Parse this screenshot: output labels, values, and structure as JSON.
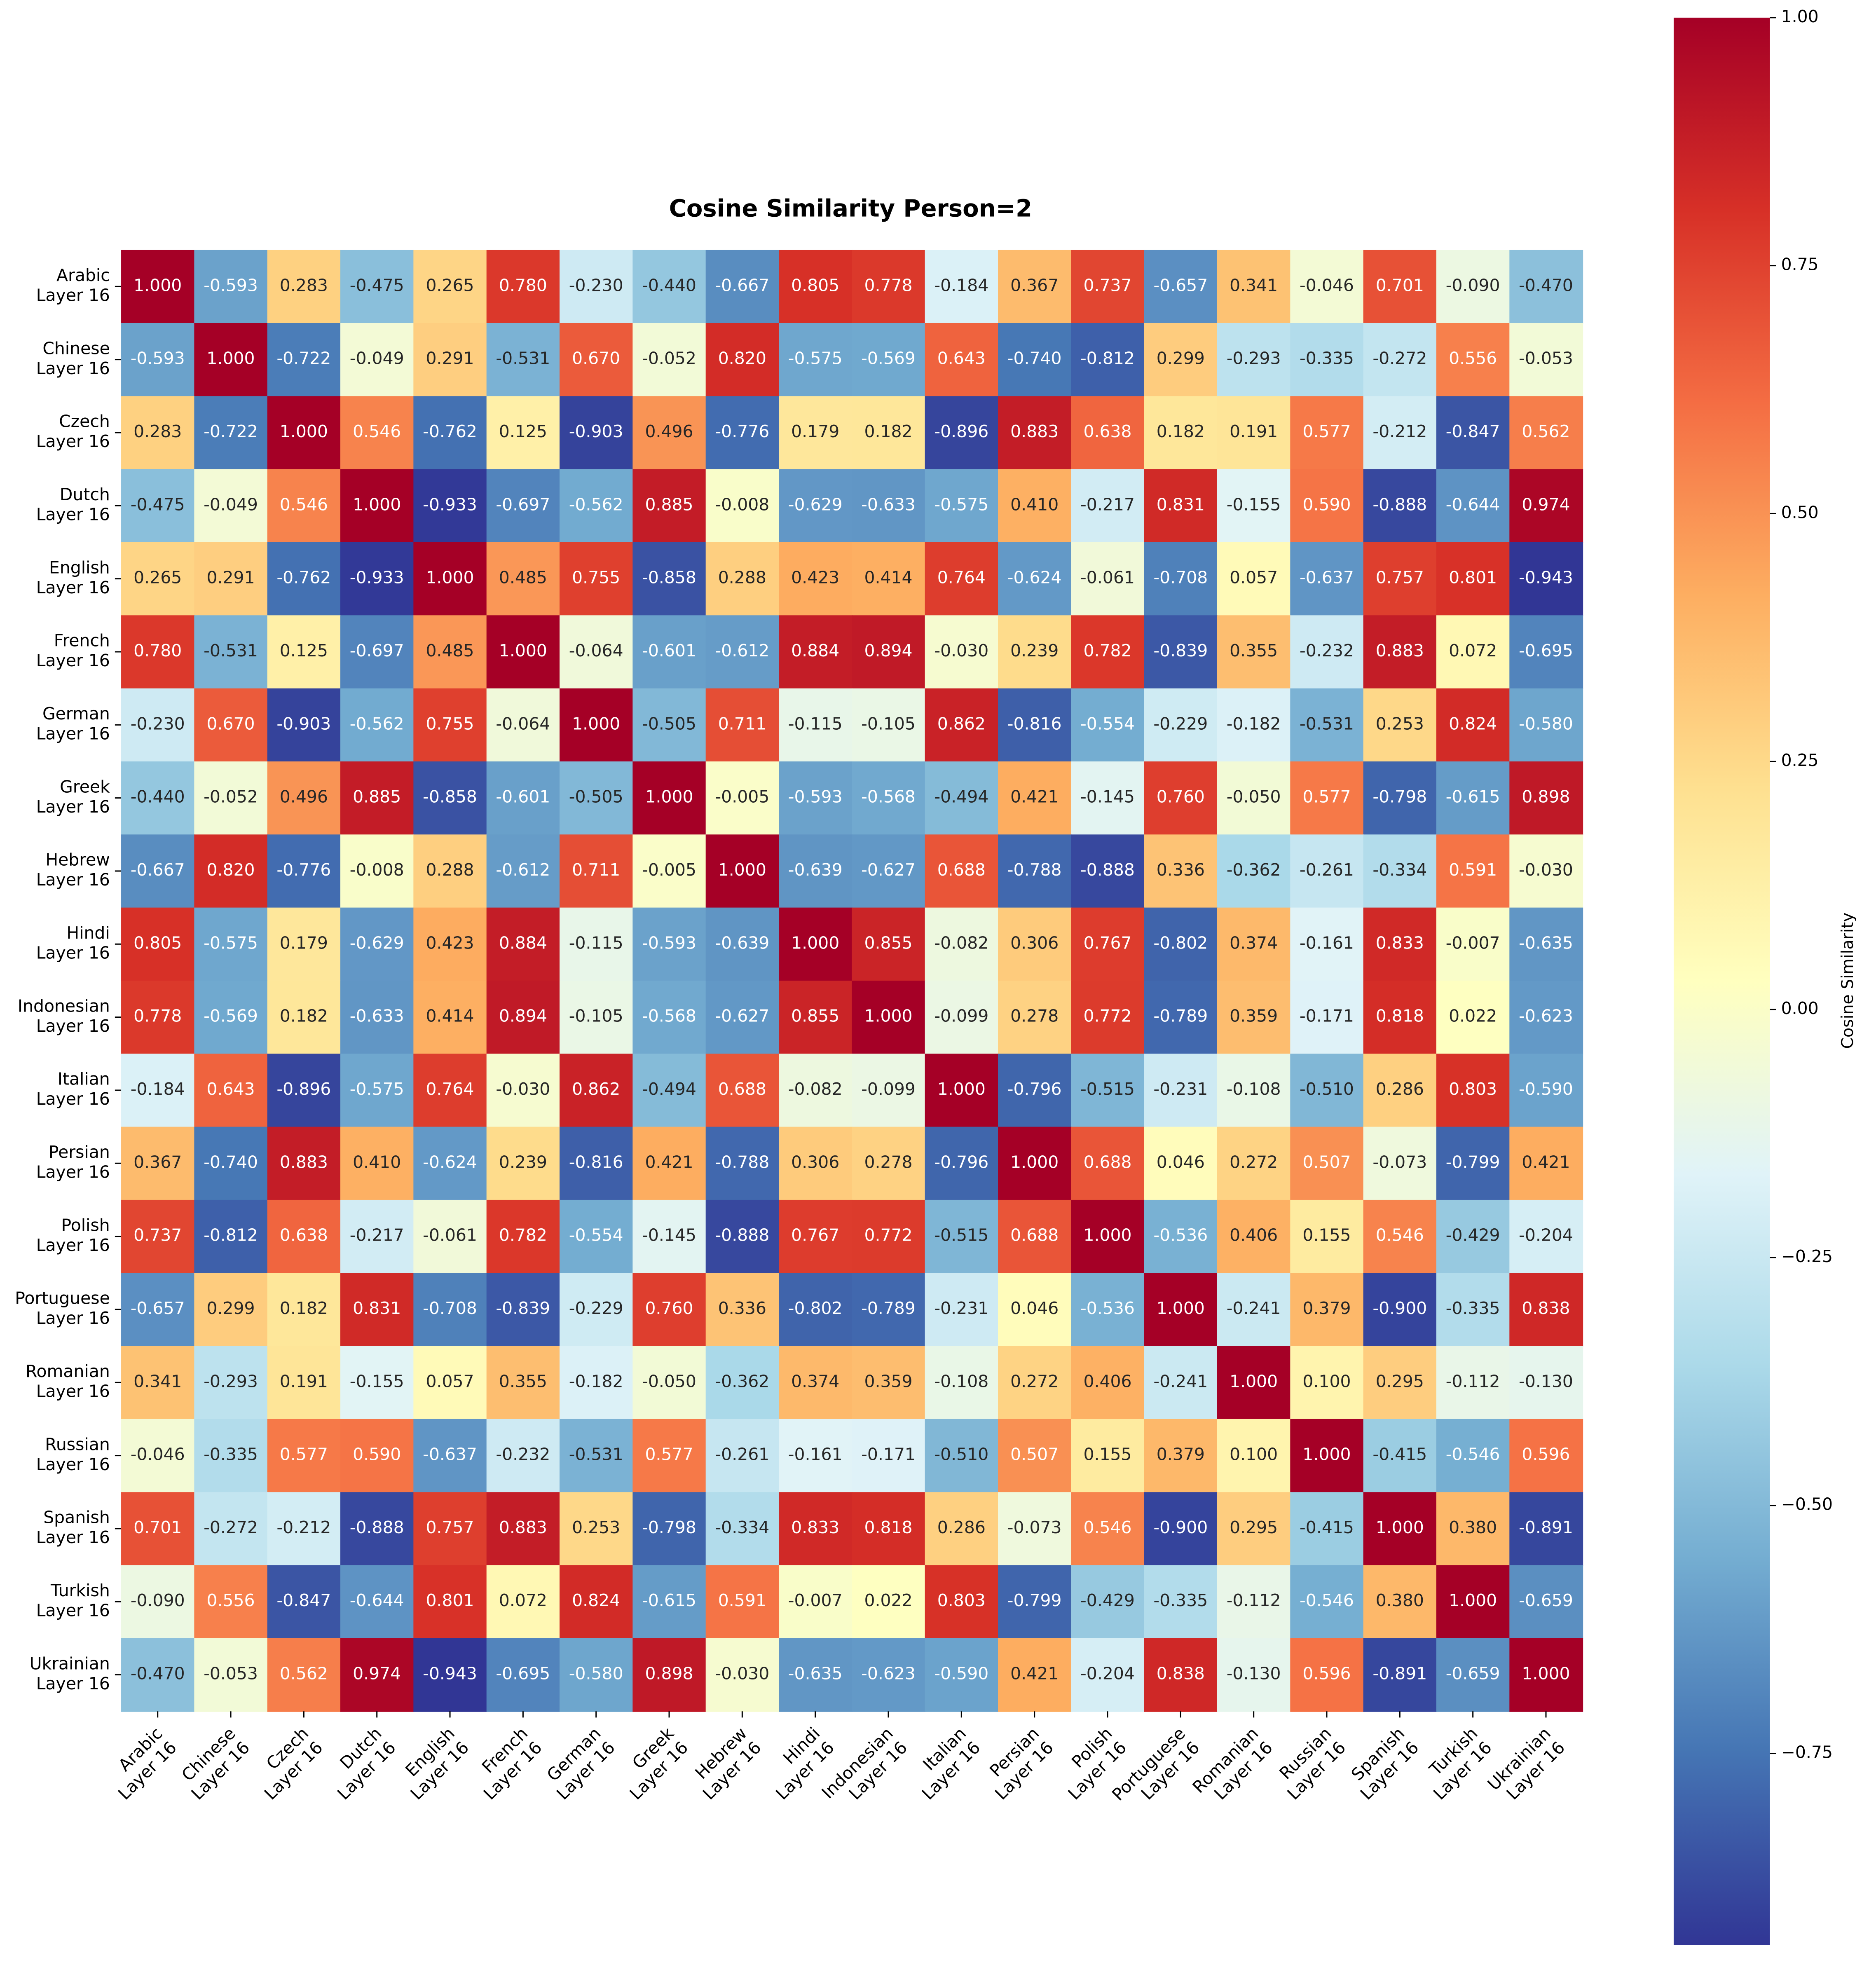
{
  "chart_data": {
    "type": "heatmap",
    "title": "Cosine Similarity Person=2",
    "categories": [
      "Arabic\nLayer 16",
      "Chinese\nLayer 16",
      "Czech\nLayer 16",
      "Dutch\nLayer 16",
      "English\nLayer 16",
      "French\nLayer 16",
      "German\nLayer 16",
      "Greek\nLayer 16",
      "Hebrew\nLayer 16",
      "Hindi\nLayer 16",
      "Indonesian\nLayer 16",
      "Italian\nLayer 16",
      "Persian\nLayer 16",
      "Polish\nLayer 16",
      "Portuguese\nLayer 16",
      "Romanian\nLayer 16",
      "Russian\nLayer 16",
      "Spanish\nLayer 16",
      "Turkish\nLayer 16",
      "Ukrainian\nLayer 16"
    ],
    "values": [
      [
        1.0,
        -0.593,
        0.283,
        -0.475,
        0.265,
        0.78,
        -0.23,
        -0.44,
        -0.667,
        0.805,
        0.778,
        -0.184,
        0.367,
        0.737,
        -0.657,
        0.341,
        -0.046,
        0.701,
        -0.09,
        -0.47
      ],
      [
        -0.593,
        1.0,
        -0.722,
        -0.049,
        0.291,
        -0.531,
        0.67,
        -0.052,
        0.82,
        -0.575,
        -0.569,
        0.643,
        -0.74,
        -0.812,
        0.299,
        -0.293,
        -0.335,
        -0.272,
        0.556,
        -0.053
      ],
      [
        0.283,
        -0.722,
        1.0,
        0.546,
        -0.762,
        0.125,
        -0.903,
        0.496,
        -0.776,
        0.179,
        0.182,
        -0.896,
        0.883,
        0.638,
        0.182,
        0.191,
        0.577,
        -0.212,
        -0.847,
        0.562
      ],
      [
        -0.475,
        -0.049,
        0.546,
        1.0,
        -0.933,
        -0.697,
        -0.562,
        0.885,
        -0.008,
        -0.629,
        -0.633,
        -0.575,
        0.41,
        -0.217,
        0.831,
        -0.155,
        0.59,
        -0.888,
        -0.644,
        0.974
      ],
      [
        0.265,
        0.291,
        -0.762,
        -0.933,
        1.0,
        0.485,
        0.755,
        -0.858,
        0.288,
        0.423,
        0.414,
        0.764,
        -0.624,
        -0.061,
        -0.708,
        0.057,
        -0.637,
        0.757,
        0.801,
        -0.943
      ],
      [
        0.78,
        -0.531,
        0.125,
        -0.697,
        0.485,
        1.0,
        -0.064,
        -0.601,
        -0.612,
        0.884,
        0.894,
        -0.03,
        0.239,
        0.782,
        -0.839,
        0.355,
        -0.232,
        0.883,
        0.072,
        -0.695
      ],
      [
        -0.23,
        0.67,
        -0.903,
        -0.562,
        0.755,
        -0.064,
        1.0,
        -0.505,
        0.711,
        -0.115,
        -0.105,
        0.862,
        -0.816,
        -0.554,
        -0.229,
        -0.182,
        -0.531,
        0.253,
        0.824,
        -0.58
      ],
      [
        -0.44,
        -0.052,
        0.496,
        0.885,
        -0.858,
        -0.601,
        -0.505,
        1.0,
        -0.005,
        -0.593,
        -0.568,
        -0.494,
        0.421,
        -0.145,
        0.76,
        -0.05,
        0.577,
        -0.798,
        -0.615,
        0.898
      ],
      [
        -0.667,
        0.82,
        -0.776,
        -0.008,
        0.288,
        -0.612,
        0.711,
        -0.005,
        1.0,
        -0.639,
        -0.627,
        0.688,
        -0.788,
        -0.888,
        0.336,
        -0.362,
        -0.261,
        -0.334,
        0.591,
        -0.03
      ],
      [
        0.805,
        -0.575,
        0.179,
        -0.629,
        0.423,
        0.884,
        -0.115,
        -0.593,
        -0.639,
        1.0,
        0.855,
        -0.082,
        0.306,
        0.767,
        -0.802,
        0.374,
        -0.161,
        0.833,
        -0.007,
        -0.635
      ],
      [
        0.778,
        -0.569,
        0.182,
        -0.633,
        0.414,
        0.894,
        -0.105,
        -0.568,
        -0.627,
        0.855,
        1.0,
        -0.099,
        0.278,
        0.772,
        -0.789,
        0.359,
        -0.171,
        0.818,
        0.022,
        -0.623
      ],
      [
        -0.184,
        0.643,
        -0.896,
        -0.575,
        0.764,
        -0.03,
        0.862,
        -0.494,
        0.688,
        -0.082,
        -0.099,
        1.0,
        -0.796,
        -0.515,
        -0.231,
        -0.108,
        -0.51,
        0.286,
        0.803,
        -0.59
      ],
      [
        0.367,
        -0.74,
        0.883,
        0.41,
        -0.624,
        0.239,
        -0.816,
        0.421,
        -0.788,
        0.306,
        0.278,
        -0.796,
        1.0,
        0.688,
        0.046,
        0.272,
        0.507,
        -0.073,
        -0.799,
        0.421
      ],
      [
        0.737,
        -0.812,
        0.638,
        -0.217,
        -0.061,
        0.782,
        -0.554,
        -0.145,
        -0.888,
        0.767,
        0.772,
        -0.515,
        0.688,
        1.0,
        -0.536,
        0.406,
        0.155,
        0.546,
        -0.429,
        -0.204
      ],
      [
        -0.657,
        0.299,
        0.182,
        0.831,
        -0.708,
        -0.839,
        -0.229,
        0.76,
        0.336,
        -0.802,
        -0.789,
        -0.231,
        0.046,
        -0.536,
        1.0,
        -0.241,
        0.379,
        -0.9,
        -0.335,
        0.838
      ],
      [
        0.341,
        -0.293,
        0.191,
        -0.155,
        0.057,
        0.355,
        -0.182,
        -0.05,
        -0.362,
        0.374,
        0.359,
        -0.108,
        0.272,
        0.406,
        -0.241,
        1.0,
        0.1,
        0.295,
        -0.112,
        -0.13
      ],
      [
        -0.046,
        -0.335,
        0.577,
        0.59,
        -0.637,
        -0.232,
        -0.531,
        0.577,
        -0.261,
        -0.161,
        -0.171,
        -0.51,
        0.507,
        0.155,
        0.379,
        0.1,
        1.0,
        -0.415,
        -0.546,
        0.596
      ],
      [
        0.701,
        -0.272,
        -0.212,
        -0.888,
        0.757,
        0.883,
        0.253,
        -0.798,
        -0.334,
        0.833,
        0.818,
        0.286,
        -0.073,
        0.546,
        -0.9,
        0.295,
        -0.415,
        1.0,
        0.38,
        -0.891
      ],
      [
        -0.09,
        0.556,
        -0.847,
        -0.644,
        0.801,
        0.072,
        0.824,
        -0.615,
        0.591,
        -0.007,
        0.022,
        0.803,
        -0.799,
        -0.429,
        -0.335,
        -0.112,
        -0.546,
        0.38,
        1.0,
        -0.659
      ],
      [
        -0.47,
        -0.053,
        0.562,
        0.974,
        -0.943,
        -0.695,
        -0.58,
        0.898,
        -0.03,
        -0.635,
        -0.623,
        -0.59,
        0.421,
        -0.204,
        0.838,
        -0.13,
        0.596,
        -0.891,
        -0.659,
        1.0
      ]
    ],
    "value_labels": [
      [
        "1.000",
        "-0.593",
        "0.283",
        "-0.475",
        "0.265",
        "0.780",
        "-0.230",
        "-0.440",
        "-0.667",
        "0.805",
        "0.778",
        "-0.184",
        "0.367",
        "0.737",
        "-0.657",
        "0.341",
        "-0.046",
        "0.701",
        "-0.090",
        "-0.470"
      ],
      [
        "-0.593",
        "1.000",
        "-0.722",
        "-0.049",
        "0.291",
        "-0.531",
        "0.670",
        "-0.052",
        "0.820",
        "-0.575",
        "-0.569",
        "0.643",
        "-0.740",
        "-0.812",
        "0.299",
        "-0.293",
        "-0.335",
        "-0.272",
        "0.556",
        "-0.053"
      ],
      [
        "0.283",
        "-0.722",
        "1.000",
        "0.546",
        "-0.762",
        "0.125",
        "-0.903",
        "0.496",
        "-0.776",
        "0.179",
        "0.182",
        "-0.896",
        "0.883",
        "0.638",
        "0.182",
        "0.191",
        "0.577",
        "-0.212",
        "-0.847",
        "0.562"
      ],
      [
        "-0.475",
        "-0.049",
        "0.546",
        "1.000",
        "-0.933",
        "-0.697",
        "-0.562",
        "0.885",
        "-0.008",
        "-0.629",
        "-0.633",
        "-0.575",
        "0.410",
        "-0.217",
        "0.831",
        "-0.155",
        "0.590",
        "-0.888",
        "-0.644",
        "0.974"
      ],
      [
        "0.265",
        "0.291",
        "-0.762",
        "-0.933",
        "1.000",
        "0.485",
        "0.755",
        "-0.858",
        "0.288",
        "0.423",
        "0.414",
        "0.764",
        "-0.624",
        "-0.061",
        "-0.708",
        "0.057",
        "-0.637",
        "0.757",
        "0.801",
        "-0.943"
      ],
      [
        "0.780",
        "-0.531",
        "0.125",
        "-0.697",
        "0.485",
        "1.000",
        "-0.064",
        "-0.601",
        "-0.612",
        "0.884",
        "0.894",
        "-0.030",
        "0.239",
        "0.782",
        "-0.839",
        "0.355",
        "-0.232",
        "0.883",
        "0.072",
        "-0.695"
      ],
      [
        "-0.230",
        "0.670",
        "-0.903",
        "-0.562",
        "0.755",
        "-0.064",
        "1.000",
        "-0.505",
        "0.711",
        "-0.115",
        "-0.105",
        "0.862",
        "-0.816",
        "-0.554",
        "-0.229",
        "-0.182",
        "-0.531",
        "0.253",
        "0.824",
        "-0.580"
      ],
      [
        "-0.440",
        "-0.052",
        "0.496",
        "0.885",
        "-0.858",
        "-0.601",
        "-0.505",
        "1.000",
        "-0.005",
        "-0.593",
        "-0.568",
        "-0.494",
        "0.421",
        "-0.145",
        "0.760",
        "-0.050",
        "0.577",
        "-0.798",
        "-0.615",
        "0.898"
      ],
      [
        "-0.667",
        "0.820",
        "-0.776",
        "-0.008",
        "0.288",
        "-0.612",
        "0.711",
        "-0.005",
        "1.000",
        "-0.639",
        "-0.627",
        "0.688",
        "-0.788",
        "-0.888",
        "0.336",
        "-0.362",
        "-0.261",
        "-0.334",
        "0.591",
        "-0.030"
      ],
      [
        "0.805",
        "-0.575",
        "0.179",
        "-0.629",
        "0.423",
        "0.884",
        "-0.115",
        "-0.593",
        "-0.639",
        "1.000",
        "0.855",
        "-0.082",
        "0.306",
        "0.767",
        "-0.802",
        "0.374",
        "-0.161",
        "0.833",
        "-0.007",
        "-0.635"
      ],
      [
        "0.778",
        "-0.569",
        "0.182",
        "-0.633",
        "0.414",
        "0.894",
        "-0.105",
        "-0.568",
        "-0.627",
        "0.855",
        "1.000",
        "-0.099",
        "0.278",
        "0.772",
        "-0.789",
        "0.359",
        "-0.171",
        "0.818",
        "0.022",
        "-0.623"
      ],
      [
        "-0.184",
        "0.643",
        "-0.896",
        "-0.575",
        "0.764",
        "-0.030",
        "0.862",
        "-0.494",
        "0.688",
        "-0.082",
        "-0.099",
        "1.000",
        "-0.796",
        "-0.515",
        "-0.231",
        "-0.108",
        "-0.510",
        "0.286",
        "0.803",
        "-0.590"
      ],
      [
        "0.367",
        "-0.740",
        "0.883",
        "0.410",
        "-0.624",
        "0.239",
        "-0.816",
        "0.421",
        "-0.788",
        "0.306",
        "0.278",
        "-0.796",
        "1.000",
        "0.688",
        "0.046",
        "0.272",
        "0.507",
        "-0.073",
        "-0.799",
        "0.421"
      ],
      [
        "0.737",
        "-0.812",
        "0.638",
        "-0.217",
        "-0.061",
        "0.782",
        "-0.554",
        "-0.145",
        "-0.888",
        "0.767",
        "0.772",
        "-0.515",
        "0.688",
        "1.000",
        "-0.536",
        "0.406",
        "0.155",
        "0.546",
        "-0.429",
        "-0.204"
      ],
      [
        "-0.657",
        "0.299",
        "0.182",
        "0.831",
        "-0.708",
        "-0.839",
        "-0.229",
        "0.760",
        "0.336",
        "-0.802",
        "-0.789",
        "-0.231",
        "0.046",
        "-0.536",
        "1.000",
        "-0.241",
        "0.379",
        "-0.900",
        "-0.335",
        "0.838"
      ],
      [
        "0.341",
        "-0.293",
        "0.191",
        "-0.155",
        "0.057",
        "0.355",
        "-0.182",
        "-0.050",
        "-0.362",
        "0.374",
        "0.359",
        "-0.108",
        "0.272",
        "0.406",
        "-0.241",
        "1.000",
        "0.100",
        "0.295",
        "-0.112",
        "-0.130"
      ],
      [
        "-0.046",
        "-0.335",
        "0.577",
        "0.590",
        "-0.637",
        "-0.232",
        "-0.531",
        "0.577",
        "-0.261",
        "-0.161",
        "-0.171",
        "-0.510",
        "0.507",
        "0.155",
        "0.379",
        "0.100",
        "1.000",
        "-0.415",
        "-0.546",
        "0.596"
      ],
      [
        "0.701",
        "-0.272",
        "-0.212",
        "-0.888",
        "0.757",
        "0.883",
        "0.253",
        "-0.798",
        "-0.334",
        "0.833",
        "0.818",
        "0.286",
        "-0.073",
        "0.546",
        "-0.900",
        "0.295",
        "-0.415",
        "1.000",
        "0.380",
        "-0.891"
      ],
      [
        "-0.090",
        "0.556",
        "-0.847",
        "-0.644",
        "0.801",
        "0.072",
        "0.824",
        "-0.615",
        "0.591",
        "-0.007",
        "0.022",
        "0.803",
        "-0.799",
        "-0.429",
        "-0.335",
        "-0.112",
        "-0.546",
        "0.380",
        "1.000",
        "-0.659"
      ],
      [
        "-0.470",
        "-0.053",
        "0.562",
        "0.974",
        "-0.943",
        "-0.695",
        "-0.580",
        "0.898",
        "-0.030",
        "-0.635",
        "-0.623",
        "-0.590",
        "0.421",
        "-0.204",
        "0.838",
        "-0.130",
        "0.596",
        "-0.891",
        "-0.659",
        "1.000"
      ]
    ],
    "colorscale": [
      "#313695",
      "#4575b4",
      "#74add1",
      "#abd9e9",
      "#e0f3f8",
      "#ffffbf",
      "#fee090",
      "#fdae61",
      "#f46d43",
      "#d73027",
      "#a50026"
    ],
    "clim": [
      -0.943,
      1.0
    ],
    "colorbar_label": "Cosine Similarity",
    "colorbar_ticks": [
      {
        "value": -0.75,
        "label": "−0.75"
      },
      {
        "value": -0.5,
        "label": "−0.50"
      },
      {
        "value": -0.25,
        "label": "−0.25"
      },
      {
        "value": 0,
        "label": "0.00"
      },
      {
        "value": 0.25,
        "label": "0.25"
      },
      {
        "value": 0.5,
        "label": "0.50"
      },
      {
        "value": 0.75,
        "label": "0.75"
      },
      {
        "value": 1,
        "label": "1.00"
      }
    ]
  }
}
